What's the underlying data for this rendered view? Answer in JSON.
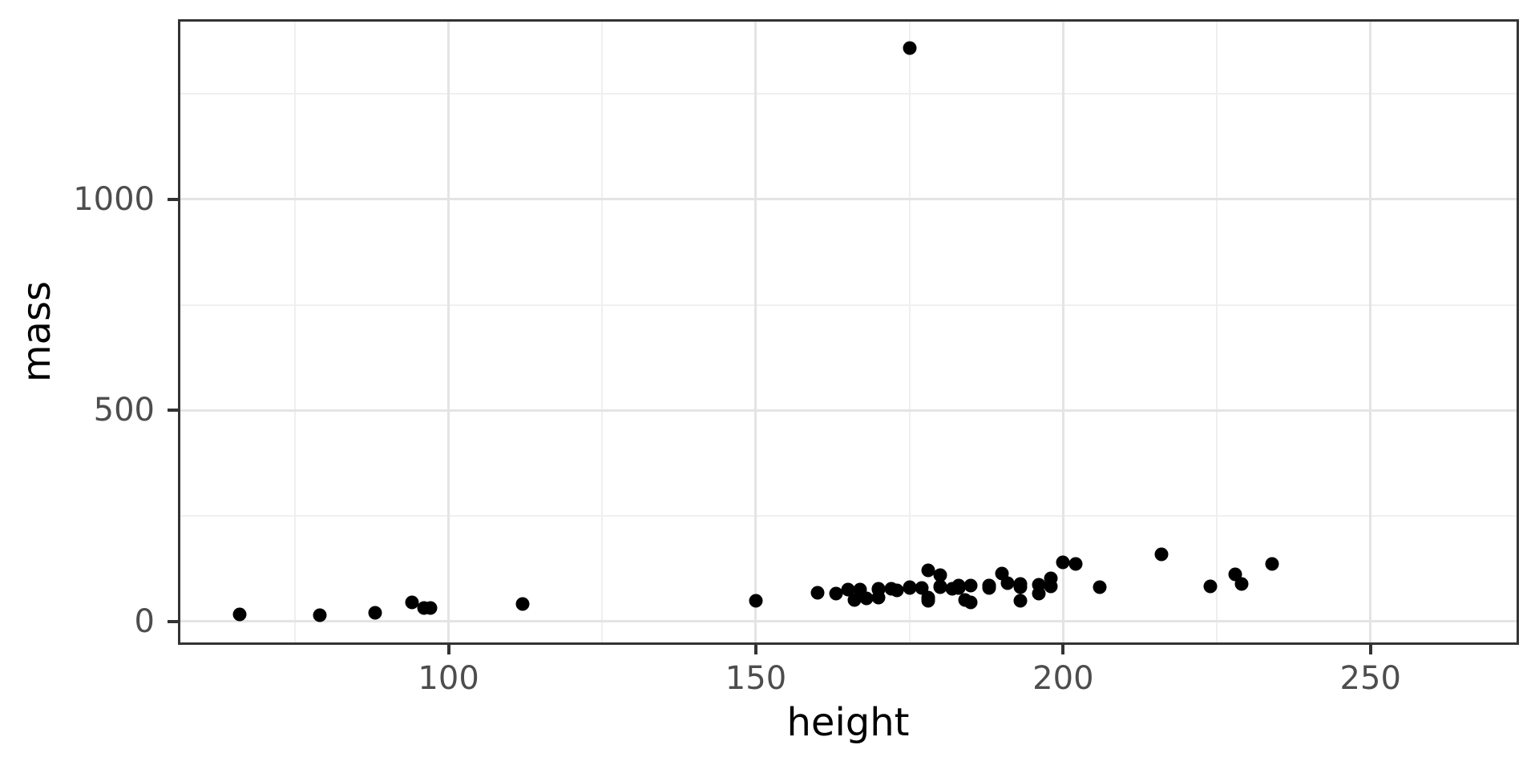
{
  "figure": {
    "background_color": "#FFFFFF"
  },
  "chart_data": {
    "type": "scatter",
    "title": "",
    "xlabel": "height",
    "ylabel": "mass",
    "x_ticks": [
      100,
      150,
      200,
      250
    ],
    "y_ticks": [
      0,
      500,
      1000
    ],
    "x_minor_gridlines": [
      75,
      125,
      175,
      225
    ],
    "y_minor_gridlines": [
      250,
      750,
      1250
    ],
    "xlim": [
      56.1,
      273.9
    ],
    "ylim": [
      -52.15,
      1425.15
    ],
    "grid": "on",
    "legend": "none",
    "points": [
      [
        172,
        77
      ],
      [
        167,
        75
      ],
      [
        96,
        32
      ],
      [
        202,
        136
      ],
      [
        150,
        49
      ],
      [
        178,
        120
      ],
      [
        165,
        75
      ],
      [
        97,
        32
      ],
      [
        183,
        84
      ],
      [
        182,
        77
      ],
      [
        188,
        84
      ],
      [
        228,
        112
      ],
      [
        180,
        80
      ],
      [
        173,
        74
      ],
      [
        175,
        1358
      ],
      [
        170,
        77
      ],
      [
        180,
        110
      ],
      [
        66,
        17
      ],
      [
        170,
        75
      ],
      [
        183,
        78.2
      ],
      [
        200,
        140
      ],
      [
        190,
        113
      ],
      [
        177,
        79
      ],
      [
        175,
        79
      ],
      [
        180,
        83
      ],
      [
        88,
        20
      ],
      [
        160,
        68
      ],
      [
        193,
        89
      ],
      [
        191,
        90
      ],
      [
        185,
        45
      ],
      [
        196,
        66
      ],
      [
        224,
        82
      ],
      [
        112,
        40
      ],
      [
        79,
        15
      ],
      [
        94,
        45
      ],
      [
        163,
        65
      ],
      [
        188,
        84
      ],
      [
        198,
        82
      ],
      [
        196,
        87
      ],
      [
        184,
        50
      ],
      [
        188,
        80
      ],
      [
        185,
        85
      ],
      [
        183,
        80
      ],
      [
        170,
        56.2
      ],
      [
        166,
        50
      ],
      [
        193,
        80
      ],
      [
        183,
        79
      ],
      [
        168,
        55
      ],
      [
        198,
        102
      ],
      [
        229,
        88
      ],
      [
        193,
        48
      ],
      [
        178,
        57
      ],
      [
        216,
        159
      ],
      [
        234,
        136
      ],
      [
        188,
        79
      ],
      [
        178,
        48
      ],
      [
        206,
        80
      ],
      [
        175,
        80
      ],
      [
        178,
        55
      ]
    ],
    "style": {
      "point_color": "#000000",
      "panel_border_color": "#333333",
      "major_grid_color": "#E4E4E4",
      "minor_grid_color": "#EFEFEF",
      "tick_color": "#333333",
      "tick_label_color": "#4D4D4D",
      "axis_title_color": "#000000"
    }
  }
}
